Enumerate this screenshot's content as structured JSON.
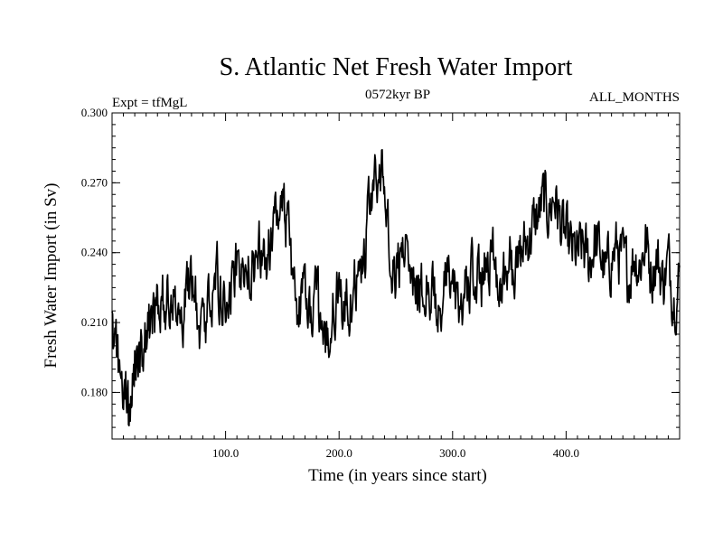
{
  "chart_data": {
    "type": "line",
    "title": "S. Atlantic Net Fresh Water Import",
    "top_left_label": "Expt = tfMgL",
    "top_center_label": "0572kyr BP",
    "top_right_label": "ALL_MONTHS",
    "xlabel": "Time (in years since start)",
    "ylabel": "Fresh Water Import (in Sv)",
    "xlim": [
      0,
      500
    ],
    "ylim": [
      0.16,
      0.3
    ],
    "x_ticks": [
      100,
      200,
      300,
      400
    ],
    "x_tick_labels": [
      "100.0",
      "200.0",
      "300.0",
      "400.0"
    ],
    "y_ticks": [
      0.18,
      0.21,
      0.24,
      0.27,
      0.3
    ],
    "y_tick_labels": [
      "0.180",
      "0.210",
      "0.240",
      "0.270",
      "0.300"
    ],
    "grid": false,
    "line_color": "#000000",
    "series": [
      {
        "x": [
          0,
          5,
          10,
          13,
          15,
          18,
          22,
          26,
          30,
          35,
          40,
          45,
          50,
          55,
          60,
          65,
          70,
          75,
          80,
          85,
          90,
          95,
          100,
          105,
          110,
          115,
          120,
          125,
          130,
          135,
          140,
          145,
          150,
          155,
          160,
          165,
          170,
          175,
          180,
          185,
          190,
          195,
          200,
          205,
          210,
          215,
          220,
          225,
          230,
          235,
          238,
          240,
          245,
          250,
          255,
          260,
          265,
          270,
          275,
          280,
          285,
          290,
          295,
          300,
          305,
          310,
          315,
          320,
          325,
          330,
          335,
          340,
          345,
          350,
          355,
          360,
          365,
          370,
          375,
          380,
          385,
          390,
          395,
          400,
          405,
          410,
          415,
          420,
          425,
          430,
          435,
          440,
          445,
          450,
          455,
          460,
          465,
          470,
          475,
          480,
          485,
          490,
          495,
          500
        ],
        "y": [
          0.205,
          0.195,
          0.185,
          0.18,
          0.168,
          0.19,
          0.2,
          0.195,
          0.205,
          0.21,
          0.215,
          0.22,
          0.218,
          0.225,
          0.21,
          0.22,
          0.225,
          0.215,
          0.205,
          0.22,
          0.23,
          0.225,
          0.215,
          0.228,
          0.235,
          0.225,
          0.232,
          0.23,
          0.24,
          0.235,
          0.245,
          0.255,
          0.262,
          0.25,
          0.228,
          0.215,
          0.22,
          0.212,
          0.218,
          0.205,
          0.2,
          0.215,
          0.225,
          0.215,
          0.222,
          0.23,
          0.235,
          0.25,
          0.265,
          0.27,
          0.278,
          0.262,
          0.245,
          0.232,
          0.238,
          0.245,
          0.235,
          0.22,
          0.23,
          0.225,
          0.215,
          0.22,
          0.228,
          0.225,
          0.215,
          0.222,
          0.23,
          0.225,
          0.228,
          0.235,
          0.24,
          0.232,
          0.228,
          0.235,
          0.23,
          0.238,
          0.245,
          0.25,
          0.255,
          0.262,
          0.258,
          0.265,
          0.252,
          0.245,
          0.24,
          0.238,
          0.242,
          0.235,
          0.245,
          0.24,
          0.23,
          0.238,
          0.242,
          0.235,
          0.23,
          0.24,
          0.235,
          0.245,
          0.232,
          0.238,
          0.228,
          0.236,
          0.222,
          0.228
        ]
      }
    ]
  }
}
